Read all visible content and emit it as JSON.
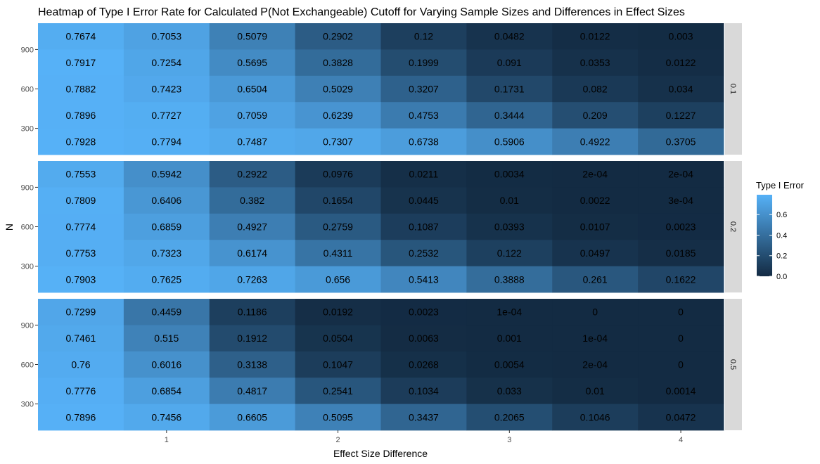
{
  "chart_data": {
    "type": "heatmap",
    "title": "Heatmap of Type I Error Rate for Calculated P(Not Exchangeable) Cutoff for Varying Sample Sizes and Differences in Effect Sizes",
    "xlabel": "Effect Size Difference",
    "ylabel": "N",
    "x_values": [
      0.5,
      1,
      1.5,
      2,
      2.5,
      3,
      3.5,
      4
    ],
    "x_ticks": [
      1,
      2,
      3,
      4
    ],
    "xlim": [
      0.25,
      4.25
    ],
    "y_values": [
      200,
      400,
      600,
      800,
      1000
    ],
    "y_ticks": [
      300,
      600,
      900
    ],
    "ylim": [
      100,
      1100
    ],
    "legend": {
      "title": "Type I Error",
      "ticks": [
        "0.0",
        "0.2",
        "0.4",
        "0.6"
      ],
      "tick_values": [
        0,
        0.2,
        0.4,
        0.6
      ],
      "range": [
        0,
        0.7928
      ],
      "low_color": "#132B43",
      "high_color": "#56B1F7",
      "position": "right"
    },
    "facets": [
      {
        "label": "0.1",
        "rows": [
          {
            "N": 1000,
            "labels": [
              "0.7674",
              "0.7053",
              "0.5079",
              "0.2902",
              "0.12",
              "0.0482",
              "0.0122",
              "0.003"
            ]
          },
          {
            "N": 800,
            "labels": [
              "0.7917",
              "0.7254",
              "0.5695",
              "0.3828",
              "0.1999",
              "0.091",
              "0.0353",
              "0.0122"
            ]
          },
          {
            "N": 600,
            "labels": [
              "0.7882",
              "0.7423",
              "0.6504",
              "0.5029",
              "0.3207",
              "0.1731",
              "0.082",
              "0.034"
            ]
          },
          {
            "N": 400,
            "labels": [
              "0.7896",
              "0.7727",
              "0.7059",
              "0.6239",
              "0.4753",
              "0.3444",
              "0.209",
              "0.1227"
            ]
          },
          {
            "N": 200,
            "labels": [
              "0.7928",
              "0.7794",
              "0.7487",
              "0.7307",
              "0.6738",
              "0.5906",
              "0.4922",
              "0.3705"
            ]
          }
        ]
      },
      {
        "label": "0.2",
        "rows": [
          {
            "N": 1000,
            "labels": [
              "0.7553",
              "0.5942",
              "0.2922",
              "0.0976",
              "0.0211",
              "0.0034",
              "2e-04",
              "2e-04"
            ]
          },
          {
            "N": 800,
            "labels": [
              "0.7809",
              "0.6406",
              "0.382",
              "0.1654",
              "0.0445",
              "0.01",
              "0.0022",
              "3e-04"
            ]
          },
          {
            "N": 600,
            "labels": [
              "0.7774",
              "0.6859",
              "0.4927",
              "0.2759",
              "0.1087",
              "0.0393",
              "0.0107",
              "0.0023"
            ]
          },
          {
            "N": 400,
            "labels": [
              "0.7753",
              "0.7323",
              "0.6174",
              "0.4311",
              "0.2532",
              "0.122",
              "0.0497",
              "0.0185"
            ]
          },
          {
            "N": 200,
            "labels": [
              "0.7903",
              "0.7625",
              "0.7263",
              "0.656",
              "0.5413",
              "0.3888",
              "0.261",
              "0.1622"
            ]
          }
        ]
      },
      {
        "label": "0.5",
        "rows": [
          {
            "N": 1000,
            "labels": [
              "0.7299",
              "0.4459",
              "0.1186",
              "0.0192",
              "0.0023",
              "1e-04",
              "0",
              "0"
            ]
          },
          {
            "N": 800,
            "labels": [
              "0.7461",
              "0.515",
              "0.1912",
              "0.0504",
              "0.0063",
              "0.001",
              "1e-04",
              "0"
            ]
          },
          {
            "N": 600,
            "labels": [
              "0.76",
              "0.6016",
              "0.3138",
              "0.1047",
              "0.0268",
              "0.0054",
              "2e-04",
              "0"
            ]
          },
          {
            "N": 400,
            "labels": [
              "0.7776",
              "0.6854",
              "0.4817",
              "0.2541",
              "0.1034",
              "0.033",
              "0.01",
              "0.0014"
            ]
          },
          {
            "N": 200,
            "labels": [
              "0.7896",
              "0.7456",
              "0.6605",
              "0.5095",
              "0.3437",
              "0.2065",
              "0.1046",
              "0.0472"
            ]
          }
        ]
      }
    ]
  }
}
